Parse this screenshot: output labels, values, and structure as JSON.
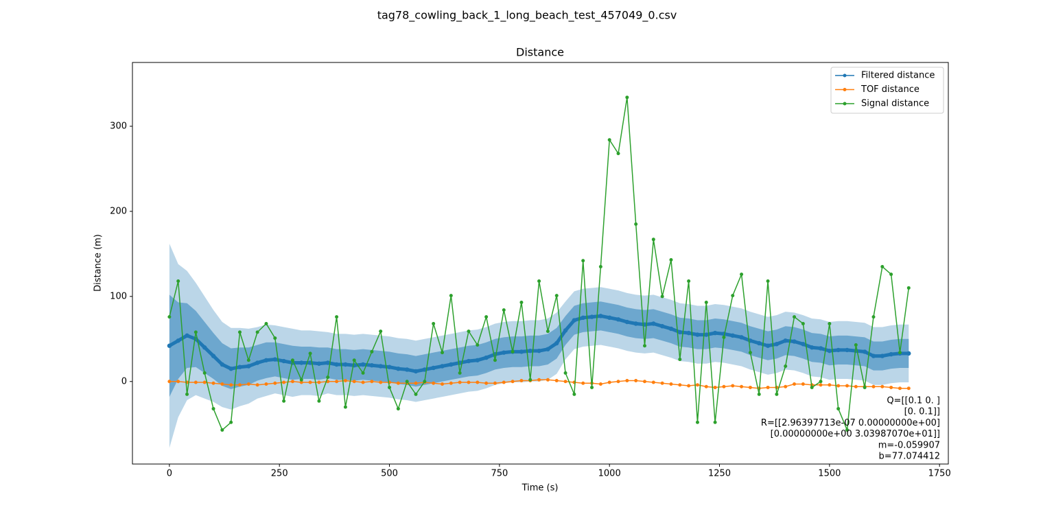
{
  "chart_data": {
    "type": "line",
    "suptitle": "tag78_cowling_back_1_long_beach_test_457049_0.csv",
    "title": "Distance",
    "xlabel": "Time (s)",
    "ylabel": "Distance (m)",
    "xlim": [
      -84,
      1770
    ],
    "ylim": [
      -97,
      375
    ],
    "xticks": [
      0,
      250,
      500,
      750,
      1000,
      1250,
      1500,
      1750
    ],
    "yticks": [
      0,
      100,
      200,
      300
    ],
    "legend": "upper right",
    "x": [
      0,
      20,
      40,
      60,
      80,
      100,
      120,
      140,
      160,
      180,
      200,
      220,
      240,
      260,
      280,
      300,
      320,
      340,
      360,
      380,
      400,
      420,
      440,
      460,
      480,
      500,
      520,
      540,
      560,
      580,
      600,
      620,
      640,
      660,
      680,
      700,
      720,
      740,
      760,
      780,
      800,
      820,
      840,
      860,
      880,
      900,
      920,
      940,
      960,
      980,
      1000,
      1020,
      1040,
      1060,
      1080,
      1100,
      1120,
      1140,
      1160,
      1180,
      1200,
      1220,
      1240,
      1260,
      1280,
      1300,
      1320,
      1340,
      1360,
      1380,
      1400,
      1420,
      1440,
      1460,
      1480,
      1500,
      1520,
      1540,
      1560,
      1580,
      1600,
      1620,
      1640,
      1660,
      1680
    ],
    "series": [
      {
        "name": "Filtered distance",
        "color": "#1f77b4",
        "values": [
          42,
          48,
          54,
          50,
          40,
          30,
          20,
          15,
          17,
          18,
          22,
          25,
          26,
          24,
          22,
          22,
          22,
          21,
          22,
          20,
          20,
          19,
          20,
          19,
          18,
          17,
          15,
          14,
          12,
          14,
          16,
          18,
          20,
          22,
          24,
          25,
          28,
          32,
          34,
          35,
          35,
          36,
          36,
          38,
          45,
          60,
          72,
          75,
          76,
          77,
          75,
          73,
          70,
          68,
          67,
          68,
          65,
          62,
          58,
          57,
          55,
          55,
          57,
          56,
          54,
          52,
          48,
          45,
          42,
          44,
          48,
          47,
          44,
          40,
          39,
          36,
          37,
          37,
          36,
          35,
          30,
          30,
          32,
          33,
          33
        ],
        "error": [
          60,
          45,
          38,
          33,
          30,
          27,
          25,
          24,
          23,
          22,
          21,
          21,
          20,
          20,
          20,
          19,
          19,
          19,
          18,
          18,
          18,
          18,
          18,
          18,
          18,
          18,
          18,
          18,
          18,
          18,
          18,
          18,
          18,
          18,
          18,
          18,
          18,
          18,
          18,
          18,
          18,
          18,
          18,
          18,
          18,
          17,
          17,
          17,
          17,
          17,
          17,
          17,
          17,
          17,
          17,
          17,
          17,
          17,
          17,
          17,
          17,
          17,
          17,
          17,
          17,
          17,
          17,
          17,
          17,
          17,
          17,
          17,
          17,
          17,
          17,
          17,
          17,
          17,
          17,
          17,
          17,
          17,
          17,
          17,
          17
        ]
      },
      {
        "name": "TOF distance",
        "color": "#ff7f0e",
        "values": [
          0,
          0,
          -1,
          -1,
          -1,
          -2,
          -3,
          -4,
          -4,
          -3,
          -4,
          -3,
          -2,
          -1,
          0,
          -1,
          -1,
          -1,
          0,
          0,
          1,
          0,
          -1,
          0,
          -1,
          -1,
          -2,
          -2,
          -2,
          -1,
          -2,
          -3,
          -2,
          -1,
          -1,
          -1,
          -2,
          -2,
          -1,
          0,
          1,
          1,
          2,
          2,
          1,
          0,
          -1,
          -2,
          -2,
          -3,
          -1,
          0,
          1,
          1,
          0,
          -1,
          -2,
          -3,
          -4,
          -5,
          -4,
          -6,
          -7,
          -6,
          -5,
          -6,
          -7,
          -8,
          -7,
          -7,
          -6,
          -3,
          -3,
          -4,
          -4,
          -4,
          -5,
          -5,
          -6,
          -6,
          -6,
          -6,
          -7,
          -8,
          -8
        ]
      },
      {
        "name": "Signal distance",
        "color": "#2ca02c",
        "values": [
          76,
          118,
          -15,
          58,
          10,
          -32,
          -57,
          -48,
          58,
          25,
          58,
          68,
          51,
          -23,
          25,
          2,
          33,
          -23,
          5,
          76,
          -30,
          25,
          10,
          35,
          59,
          -7,
          -32,
          0,
          -15,
          0,
          68,
          34,
          101,
          10,
          59,
          43,
          76,
          25,
          84,
          35,
          93,
          2,
          118,
          59,
          101,
          10,
          -15,
          142,
          -7,
          135,
          284,
          268,
          334,
          185,
          42,
          167,
          100,
          143,
          26,
          118,
          -48,
          93,
          -48,
          52,
          101,
          126,
          34,
          -15,
          118,
          -15,
          18,
          76,
          68,
          -7,
          0,
          68,
          -32,
          -57,
          43,
          -7,
          76,
          135,
          126,
          34,
          110
        ]
      }
    ],
    "annotation": [
      "Q=[[0.1 0. ]",
      "[0.  0.1]]",
      "R=[[2.96397713e-07 0.00000000e+00]",
      "[0.00000000e+00 3.03987070e+01]]",
      "m=-0.059907",
      "b=77.074412"
    ]
  }
}
